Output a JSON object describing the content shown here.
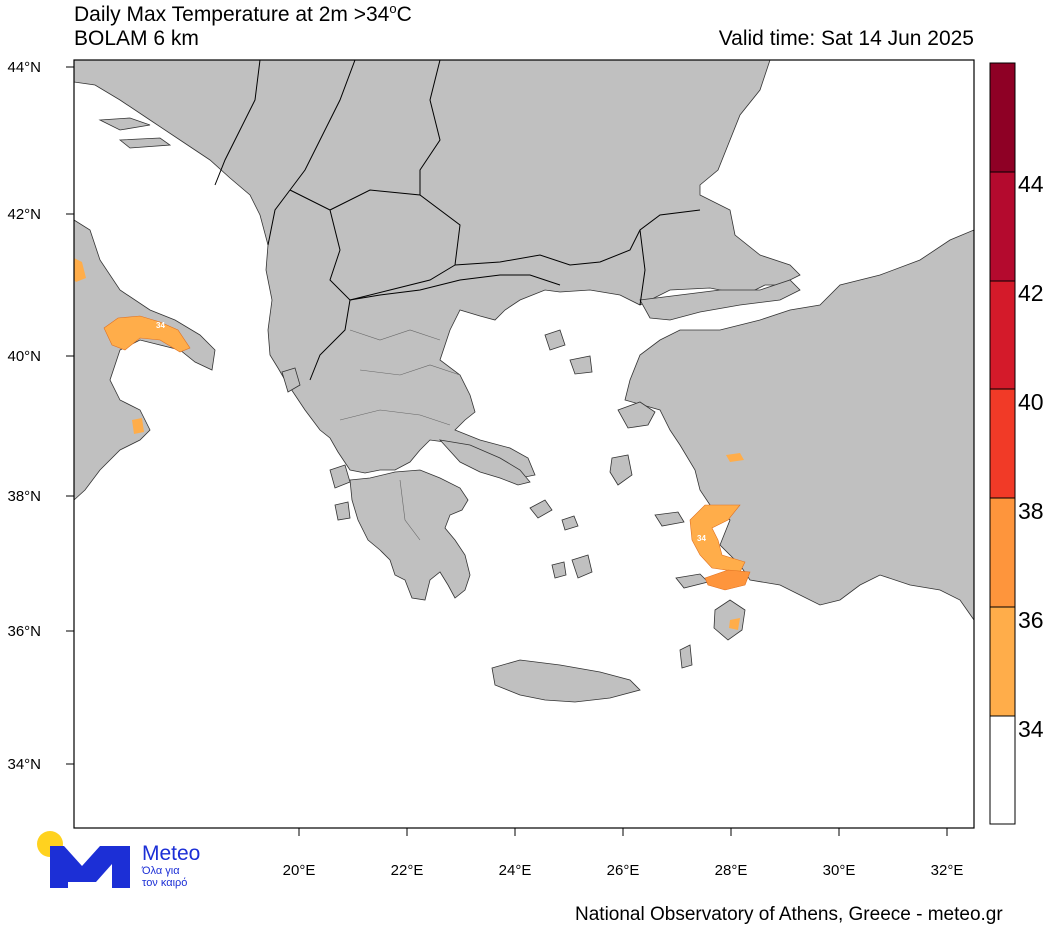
{
  "header": {
    "title_line1": "Daily Max Temperature at 2m >34",
    "title_unit_sup": "o",
    "title_unit": "C",
    "title_line2": "BOLAM 6 km",
    "valid_time": "Valid time: Sat 14 Jun 2025"
  },
  "footer": {
    "credit": "National Observatory of Athens, Greece - meteo.gr"
  },
  "logo": {
    "brand": "Meteo",
    "tagline1": "Όλα για",
    "tagline2": "τον καιρό",
    "colors": {
      "blue": "#1c2fd6",
      "yellow": "#ffd21f"
    }
  },
  "map": {
    "latitude_labels": [
      "44°N",
      "42°N",
      "40°N",
      "38°N",
      "36°N",
      "34°N"
    ],
    "longitude_labels": [
      "20°E",
      "22°E",
      "24°E",
      "26°E",
      "28°E",
      "30°E",
      "32°E"
    ],
    "contour_labels": [
      "34",
      "34"
    ],
    "colors": {
      "land": "#c0c0c0",
      "sea": "#ffffff",
      "border": "#000000"
    }
  },
  "colorbar": {
    "ticks": [
      "34",
      "36",
      "38",
      "40",
      "42",
      "44"
    ],
    "bins": [
      {
        "range": "34-36",
        "color": "#ffad4a"
      },
      {
        "range": "36-38",
        "color": "#fe953c"
      },
      {
        "range": "38-40",
        "color": "#f13a27"
      },
      {
        "range": "40-42",
        "color": "#d41a2a"
      },
      {
        "range": "42-44",
        "color": "#b40a2e"
      },
      {
        "range": ">44",
        "color": "#8e0025"
      }
    ],
    "below_color": "#ffffff"
  }
}
